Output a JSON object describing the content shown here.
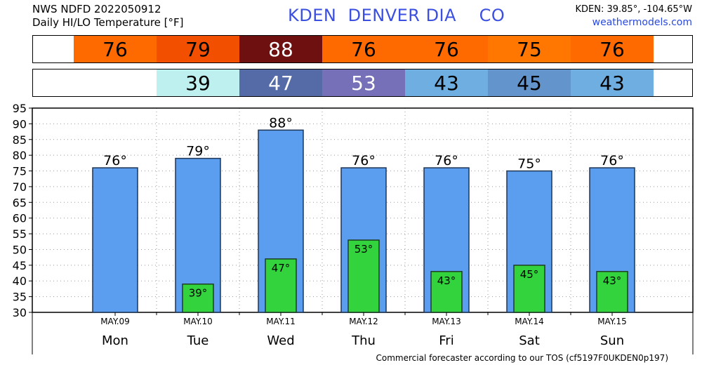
{
  "header": {
    "line1": "NWS NDFD 2022050912",
    "line2": "Daily HI/LO Temperature [°F]",
    "title": "KDEN  DENVER DIA    CO",
    "coords": "KDEN: 39.85°, -104.65°W",
    "site": "weathermodels.com"
  },
  "hi_band": [
    {
      "text": "76",
      "bg": "#ff6a00",
      "fg": "#000000"
    },
    {
      "text": "79",
      "bg": "#f24f00",
      "fg": "#000000"
    },
    {
      "text": "88",
      "bg": "#6e1010",
      "fg": "#ffffff"
    },
    {
      "text": "76",
      "bg": "#ff6a00",
      "fg": "#000000"
    },
    {
      "text": "76",
      "bg": "#ff6a00",
      "fg": "#000000"
    },
    {
      "text": "75",
      "bg": "#ff7700",
      "fg": "#000000"
    },
    {
      "text": "76",
      "bg": "#ff6a00",
      "fg": "#000000"
    }
  ],
  "lo_band": [
    {
      "text": "",
      "bg": "#ffffff",
      "fg": "#000000"
    },
    {
      "text": "39",
      "bg": "#bff0f0",
      "fg": "#000000"
    },
    {
      "text": "47",
      "bg": "#546ba8",
      "fg": "#ffffff"
    },
    {
      "text": "53",
      "bg": "#7570b8",
      "fg": "#ffffff"
    },
    {
      "text": "43",
      "bg": "#6eaee0",
      "fg": "#000000"
    },
    {
      "text": "45",
      "bg": "#6494cc",
      "fg": "#000000"
    },
    {
      "text": "43",
      "bg": "#6eaee0",
      "fg": "#000000"
    }
  ],
  "chart_data": {
    "type": "bar",
    "categories": [
      "Mon",
      "Tue",
      "Wed",
      "Thu",
      "Fri",
      "Sat",
      "Sun"
    ],
    "dates": [
      "MAY.09",
      "MAY.10",
      "MAY.11",
      "MAY.12",
      "MAY.13",
      "MAY.14",
      "MAY.15"
    ],
    "series": [
      {
        "values": [
          76,
          79,
          88,
          76,
          76,
          75,
          76
        ],
        "color": "#5b9ef0"
      },
      {
        "values": [
          null,
          39,
          47,
          53,
          43,
          45,
          43
        ],
        "color": "#33d33e"
      }
    ],
    "hi_labels": [
      "76°",
      "79°",
      "88°",
      "76°",
      "76°",
      "75°",
      "76°"
    ],
    "lo_labels": [
      "",
      "39°",
      "47°",
      "53°",
      "43°",
      "45°",
      "43°"
    ],
    "ylim": [
      30,
      95
    ],
    "yticks": [
      30,
      35,
      40,
      45,
      50,
      55,
      60,
      65,
      70,
      75,
      80,
      85,
      90,
      95
    ],
    "grid": true
  },
  "footer": "Commercial forecaster according to our TOS (cf5197F0UKDEN0p197)"
}
